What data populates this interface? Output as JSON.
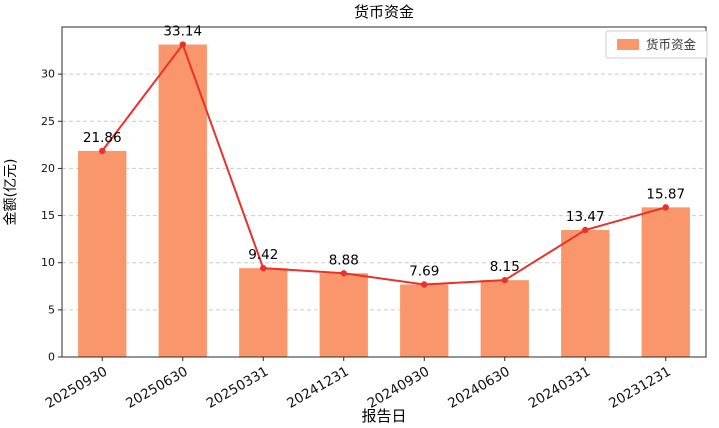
{
  "chart_data": {
    "type": "bar",
    "title": "货币资金",
    "xlabel": "报告日",
    "ylabel": "金额(亿元)",
    "categories": [
      "20250930",
      "20250630",
      "20250331",
      "20241231",
      "20240930",
      "20240630",
      "20240331",
      "20231231"
    ],
    "series": [
      {
        "name": "货币资金",
        "render": "bar",
        "values": [
          21.86,
          33.14,
          9.42,
          8.88,
          7.69,
          8.15,
          13.47,
          15.87
        ]
      },
      {
        "name": "货币资金",
        "render": "line",
        "values": [
          21.86,
          33.14,
          9.42,
          8.88,
          7.69,
          8.15,
          13.47,
          15.87
        ]
      }
    ],
    "value_labels": [
      "21.86",
      "33.14",
      "9.42",
      "8.88",
      "7.69",
      "8.15",
      "13.47",
      "15.87"
    ],
    "ylim": [
      0,
      35
    ],
    "yticks": [
      0,
      5,
      10,
      15,
      20,
      25,
      30
    ],
    "grid": "dashed-horizontal",
    "legend": {
      "label": "货币资金",
      "position": "top-right"
    },
    "colors": {
      "bar": "#f9966b",
      "line": "#e8322b",
      "marker": "#e8322b",
      "grid": "#cccccc",
      "axis": "#2b2b2b",
      "text": "#111111",
      "legend_border": "#cccccc",
      "legend_bg": "#ffffff"
    }
  }
}
